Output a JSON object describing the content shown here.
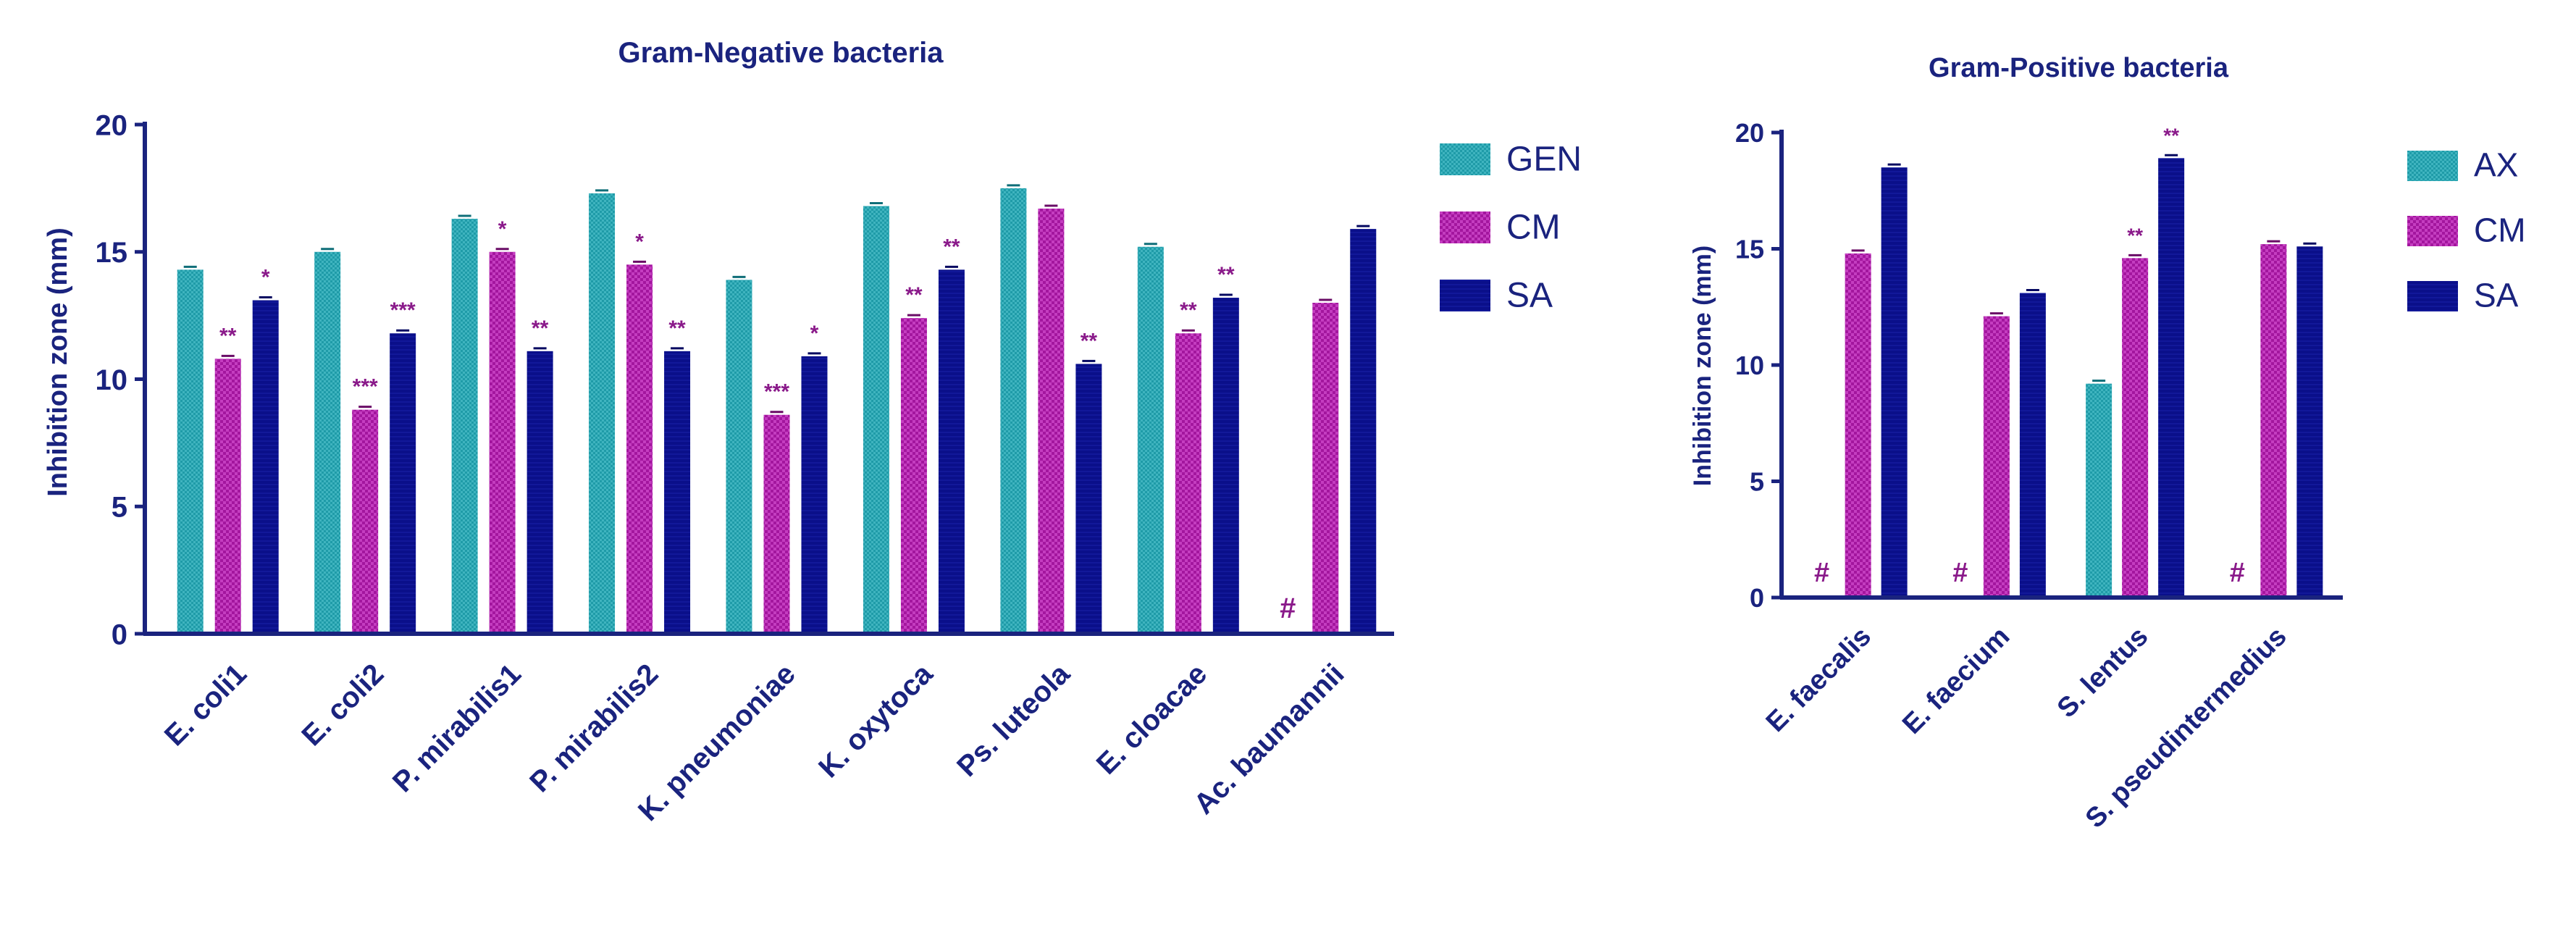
{
  "colors": {
    "GEN": "#1f9ba8",
    "AX": "#1f9ba8",
    "CM": "#a3169e",
    "SA": "#0a0f8a",
    "axis": "#1a237e",
    "annotation": "#8a1a8a"
  },
  "chart_data": [
    {
      "type": "bar",
      "title": "Gram-Negative bacteria",
      "xlabel": "",
      "ylabel": "Inhibition zone (mm)",
      "ylim": [
        0,
        20
      ],
      "yticks": [
        "0",
        "5",
        "10",
        "15",
        "20"
      ],
      "legend_position": "right",
      "categories": [
        "E. coli1",
        "E. coli2",
        "P. mirabilis1",
        "P. mirabilis2",
        "K. pneumoniae",
        "K. oxytoca",
        "Ps. luteola",
        "E. cloacae",
        "Ac. baumannii"
      ],
      "series": [
        {
          "name": "GEN",
          "values": [
            14.3,
            15.0,
            16.3,
            17.3,
            13.9,
            16.8,
            17.5,
            15.2,
            0
          ],
          "labels": [
            "",
            "",
            "",
            "",
            "",
            "",
            "",
            "",
            "#"
          ]
        },
        {
          "name": "CM",
          "values": [
            10.8,
            8.8,
            15.0,
            14.5,
            8.6,
            12.4,
            16.7,
            11.8,
            13.0
          ],
          "labels": [
            "**",
            "***",
            "*",
            "*",
            "***",
            "**",
            "",
            "**",
            ""
          ]
        },
        {
          "name": "SA",
          "values": [
            13.1,
            11.8,
            11.1,
            11.1,
            10.9,
            14.3,
            10.6,
            13.2,
            15.9
          ],
          "labels": [
            "*",
            "***",
            "**",
            "**",
            "*",
            "**",
            "**",
            "**",
            ""
          ]
        }
      ]
    },
    {
      "type": "bar",
      "title": "Gram-Positive bacteria",
      "xlabel": "",
      "ylabel": "Inhibition zone (mm)",
      "ylim": [
        0,
        20
      ],
      "yticks": [
        "0",
        "5",
        "10",
        "15",
        "20"
      ],
      "legend_position": "right",
      "categories": [
        "E. faecalis",
        "E. faecium",
        "S. lentus",
        "S. pseudintermedius"
      ],
      "series": [
        {
          "name": "AX",
          "values": [
            0,
            0,
            9.2,
            0
          ],
          "labels": [
            "#",
            "#",
            "",
            "#"
          ]
        },
        {
          "name": "CM",
          "values": [
            14.8,
            12.1,
            14.6,
            15.2
          ],
          "labels": [
            "",
            "",
            "**",
            ""
          ]
        },
        {
          "name": "SA",
          "values": [
            18.5,
            13.1,
            18.9,
            15.1
          ],
          "labels": [
            "",
            "",
            "**",
            ""
          ]
        }
      ]
    }
  ]
}
